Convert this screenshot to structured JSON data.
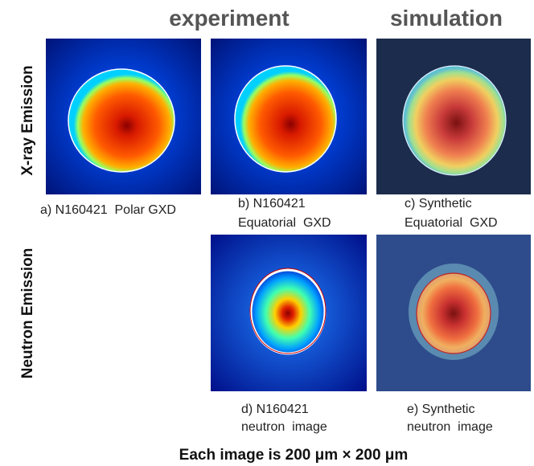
{
  "headers": {
    "experiment": "experiment",
    "simulation": "simulation"
  },
  "row_labels": {
    "xray": "X-ray Emission",
    "neutron": "Neutron Emission"
  },
  "panels": [
    {
      "caption": [
        "a) N160421  Polar GXD"
      ]
    },
    {
      "caption": [
        "b) N160421",
        "Equatorial  GXD"
      ]
    },
    {
      "caption": [
        "c) Synthetic",
        "Equatorial  GXD"
      ]
    },
    {
      "caption": [
        "d) N160421",
        "neutron  image"
      ]
    },
    {
      "caption": [
        "e) Synthetic",
        "neutron  image"
      ]
    }
  ],
  "footer": "Each image is 200 μm × 200 μm"
}
